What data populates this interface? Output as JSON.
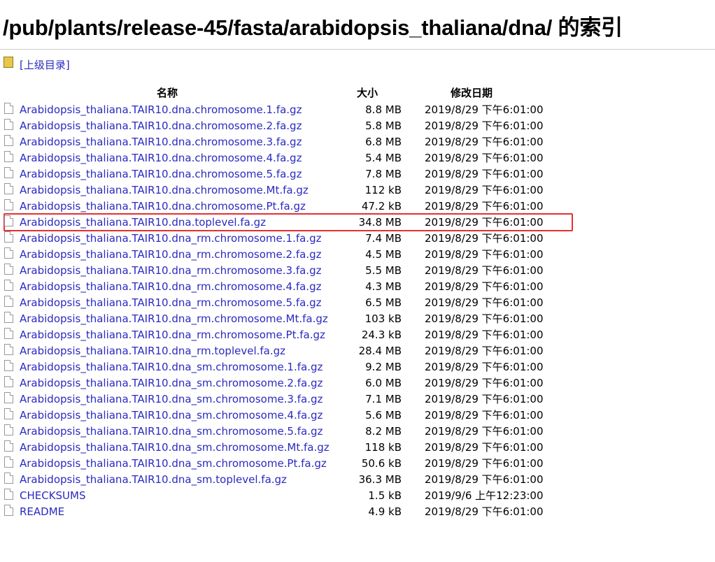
{
  "header": {
    "title": "/pub/plants/release-45/fasta/arabidopsis_thaliana/dna/ 的索引",
    "parent_link": "[上级目录]"
  },
  "table": {
    "columns": [
      "名称",
      "大小",
      "修改日期"
    ],
    "rows": [
      [
        "Arabidopsis_thaliana.TAIR10.dna.chromosome.1.fa.gz",
        "8.8 MB",
        "2019/8/29 下午6:01:00"
      ],
      [
        "Arabidopsis_thaliana.TAIR10.dna.chromosome.2.fa.gz",
        "5.8 MB",
        "2019/8/29 下午6:01:00"
      ],
      [
        "Arabidopsis_thaliana.TAIR10.dna.chromosome.3.fa.gz",
        "6.8 MB",
        "2019/8/29 下午6:01:00"
      ],
      [
        "Arabidopsis_thaliana.TAIR10.dna.chromosome.4.fa.gz",
        "5.4 MB",
        "2019/8/29 下午6:01:00"
      ],
      [
        "Arabidopsis_thaliana.TAIR10.dna.chromosome.5.fa.gz",
        "7.8 MB",
        "2019/8/29 下午6:01:00"
      ],
      [
        "Arabidopsis_thaliana.TAIR10.dna.chromosome.Mt.fa.gz",
        "112 kB",
        "2019/8/29 下午6:01:00"
      ],
      [
        "Arabidopsis_thaliana.TAIR10.dna.chromosome.Pt.fa.gz",
        "47.2 kB",
        "2019/8/29 下午6:01:00"
      ],
      [
        "Arabidopsis_thaliana.TAIR10.dna.toplevel.fa.gz",
        "34.8 MB",
        "2019/8/29 下午6:01:00"
      ],
      [
        "Arabidopsis_thaliana.TAIR10.dna_rm.chromosome.1.fa.gz",
        "7.4 MB",
        "2019/8/29 下午6:01:00"
      ],
      [
        "Arabidopsis_thaliana.TAIR10.dna_rm.chromosome.2.fa.gz",
        "4.5 MB",
        "2019/8/29 下午6:01:00"
      ],
      [
        "Arabidopsis_thaliana.TAIR10.dna_rm.chromosome.3.fa.gz",
        "5.5 MB",
        "2019/8/29 下午6:01:00"
      ],
      [
        "Arabidopsis_thaliana.TAIR10.dna_rm.chromosome.4.fa.gz",
        "4.3 MB",
        "2019/8/29 下午6:01:00"
      ],
      [
        "Arabidopsis_thaliana.TAIR10.dna_rm.chromosome.5.fa.gz",
        "6.5 MB",
        "2019/8/29 下午6:01:00"
      ],
      [
        "Arabidopsis_thaliana.TAIR10.dna_rm.chromosome.Mt.fa.gz",
        "103 kB",
        "2019/8/29 下午6:01:00"
      ],
      [
        "Arabidopsis_thaliana.TAIR10.dna_rm.chromosome.Pt.fa.gz",
        "24.3 kB",
        "2019/8/29 下午6:01:00"
      ],
      [
        "Arabidopsis_thaliana.TAIR10.dna_rm.toplevel.fa.gz",
        "28.4 MB",
        "2019/8/29 下午6:01:00"
      ],
      [
        "Arabidopsis_thaliana.TAIR10.dna_sm.chromosome.1.fa.gz",
        "9.2 MB",
        "2019/8/29 下午6:01:00"
      ],
      [
        "Arabidopsis_thaliana.TAIR10.dna_sm.chromosome.2.fa.gz",
        "6.0 MB",
        "2019/8/29 下午6:01:00"
      ],
      [
        "Arabidopsis_thaliana.TAIR10.dna_sm.chromosome.3.fa.gz",
        "7.1 MB",
        "2019/8/29 下午6:01:00"
      ],
      [
        "Arabidopsis_thaliana.TAIR10.dna_sm.chromosome.4.fa.gz",
        "5.6 MB",
        "2019/8/29 下午6:01:00"
      ],
      [
        "Arabidopsis_thaliana.TAIR10.dna_sm.chromosome.5.fa.gz",
        "8.2 MB",
        "2019/8/29 下午6:01:00"
      ],
      [
        "Arabidopsis_thaliana.TAIR10.dna_sm.chromosome.Mt.fa.gz",
        "118 kB",
        "2019/8/29 下午6:01:00"
      ],
      [
        "Arabidopsis_thaliana.TAIR10.dna_sm.chromosome.Pt.fa.gz",
        "50.6 kB",
        "2019/8/29 下午6:01:00"
      ],
      [
        "Arabidopsis_thaliana.TAIR10.dna_sm.toplevel.fa.gz",
        "36.3 MB",
        "2019/8/29 下午6:01:00"
      ],
      [
        "CHECKSUMS",
        "1.5 kB",
        "2019/9/6 上午12:23:00"
      ],
      [
        "README",
        "4.9 kB",
        "2019/8/29 下午6:01:00"
      ]
    ]
  }
}
